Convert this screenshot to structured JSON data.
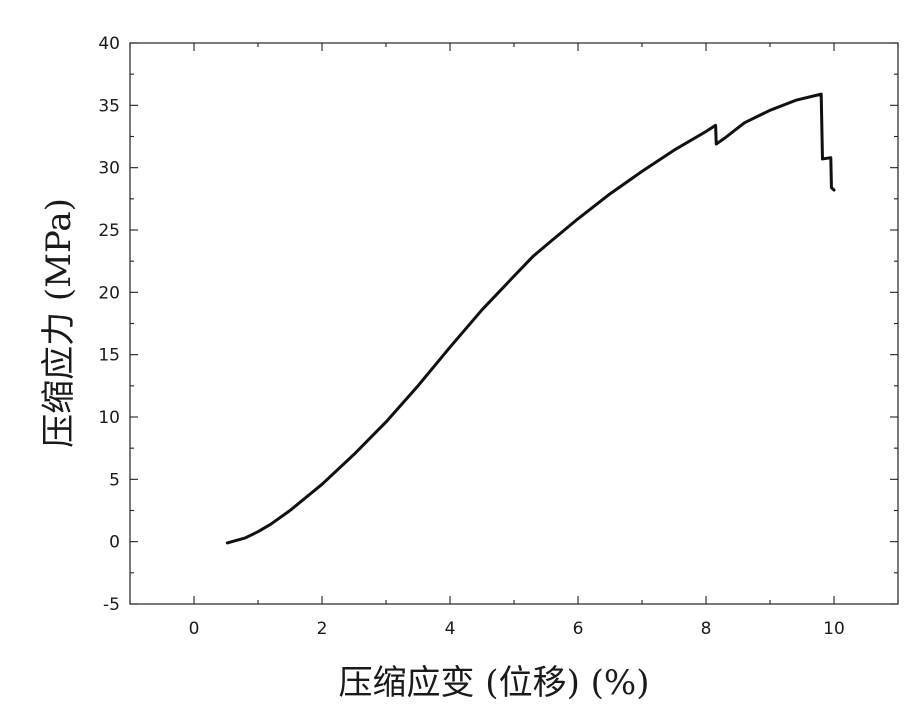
{
  "chart_data": {
    "type": "line",
    "title": "",
    "xlabel": "压缩应变 (位移) (%)",
    "ylabel": "压缩应力 (MPa)",
    "xlim": [
      -1,
      11
    ],
    "ylim": [
      -5,
      40
    ],
    "x_ticks": [
      0,
      2,
      4,
      6,
      8,
      10
    ],
    "x_tick_labels": [
      "0",
      "2",
      "4",
      "6",
      "8",
      "10"
    ],
    "y_ticks": [
      -5,
      0,
      5,
      10,
      15,
      20,
      25,
      30,
      35,
      40
    ],
    "y_tick_labels": [
      "-5",
      "0",
      "5",
      "10",
      "15",
      "20",
      "25",
      "30",
      "35",
      "40"
    ],
    "grid": false,
    "legend": "none",
    "line_color": "#111111",
    "series": [
      {
        "x": [
          0.52,
          0.8,
          1.0,
          1.2,
          1.5,
          2.0,
          2.5,
          3.0,
          3.5,
          4.0,
          4.5,
          5.0,
          5.3,
          5.6,
          6.0,
          6.5,
          7.0,
          7.5,
          8.0,
          8.15,
          8.16,
          8.3,
          8.6,
          9.0,
          9.4,
          9.8,
          9.82,
          9.95,
          9.96,
          10.0
        ],
        "y": [
          -0.1,
          0.3,
          0.8,
          1.4,
          2.5,
          4.6,
          7.0,
          9.6,
          12.5,
          15.6,
          18.6,
          21.3,
          22.9,
          24.2,
          25.9,
          27.9,
          29.7,
          31.4,
          32.9,
          33.4,
          31.9,
          32.4,
          33.6,
          34.6,
          35.4,
          35.9,
          30.7,
          30.8,
          28.4,
          28.2
        ]
      }
    ]
  }
}
